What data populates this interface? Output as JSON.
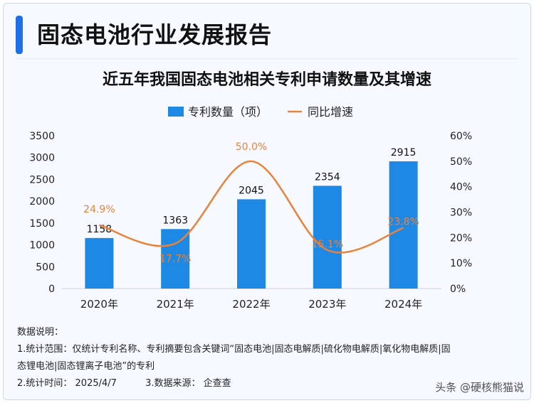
{
  "header": {
    "title": "固态电池行业发展报告"
  },
  "chart_data": {
    "type": "bar+line",
    "title": "近五年我国固态电池相关专利申请数量及其增速",
    "categories": [
      "2020年",
      "2021年",
      "2022年",
      "2023年",
      "2024年"
    ],
    "series": [
      {
        "name": "专利数量（项）",
        "type": "bar",
        "axis": "left",
        "color": "#1e88e5",
        "values": [
          1158,
          1363,
          2045,
          2354,
          2915
        ],
        "labels": [
          "1158",
          "1363",
          "2045",
          "2354",
          "2915"
        ]
      },
      {
        "name": "同比增速",
        "type": "line",
        "axis": "right",
        "color": "#e8833a",
        "values": [
          24.9,
          17.7,
          50.0,
          15.1,
          23.8
        ],
        "labels": [
          "24.9%",
          "17.7%",
          "50.0%",
          "15.1%",
          "23.8%"
        ]
      }
    ],
    "y_left": {
      "min": 0,
      "max": 3500,
      "ticks": [
        "0",
        "500",
        "1000",
        "1500",
        "2000",
        "2500",
        "3000",
        "3500"
      ]
    },
    "y_right": {
      "min": 0,
      "max": 60,
      "ticks": [
        "0%",
        "10%",
        "20%",
        "30%",
        "40%",
        "50%",
        "60%"
      ]
    },
    "legend_position": "top-center",
    "grid": false
  },
  "notes": {
    "heading": "数据说明：",
    "scope_line1": "1.统计范围：仅统计专利名称、专利摘要包含关键词“固态电池|固态电解质|硫化物电解质|氧化物电解质|固",
    "scope_line2": "态锂电池|固态锂离子电池”的专利",
    "time": "2.统计时间：  2025/4/7",
    "source": "3.数据来源：  企查查"
  },
  "watermark": "头条 @硬核熊猫说"
}
